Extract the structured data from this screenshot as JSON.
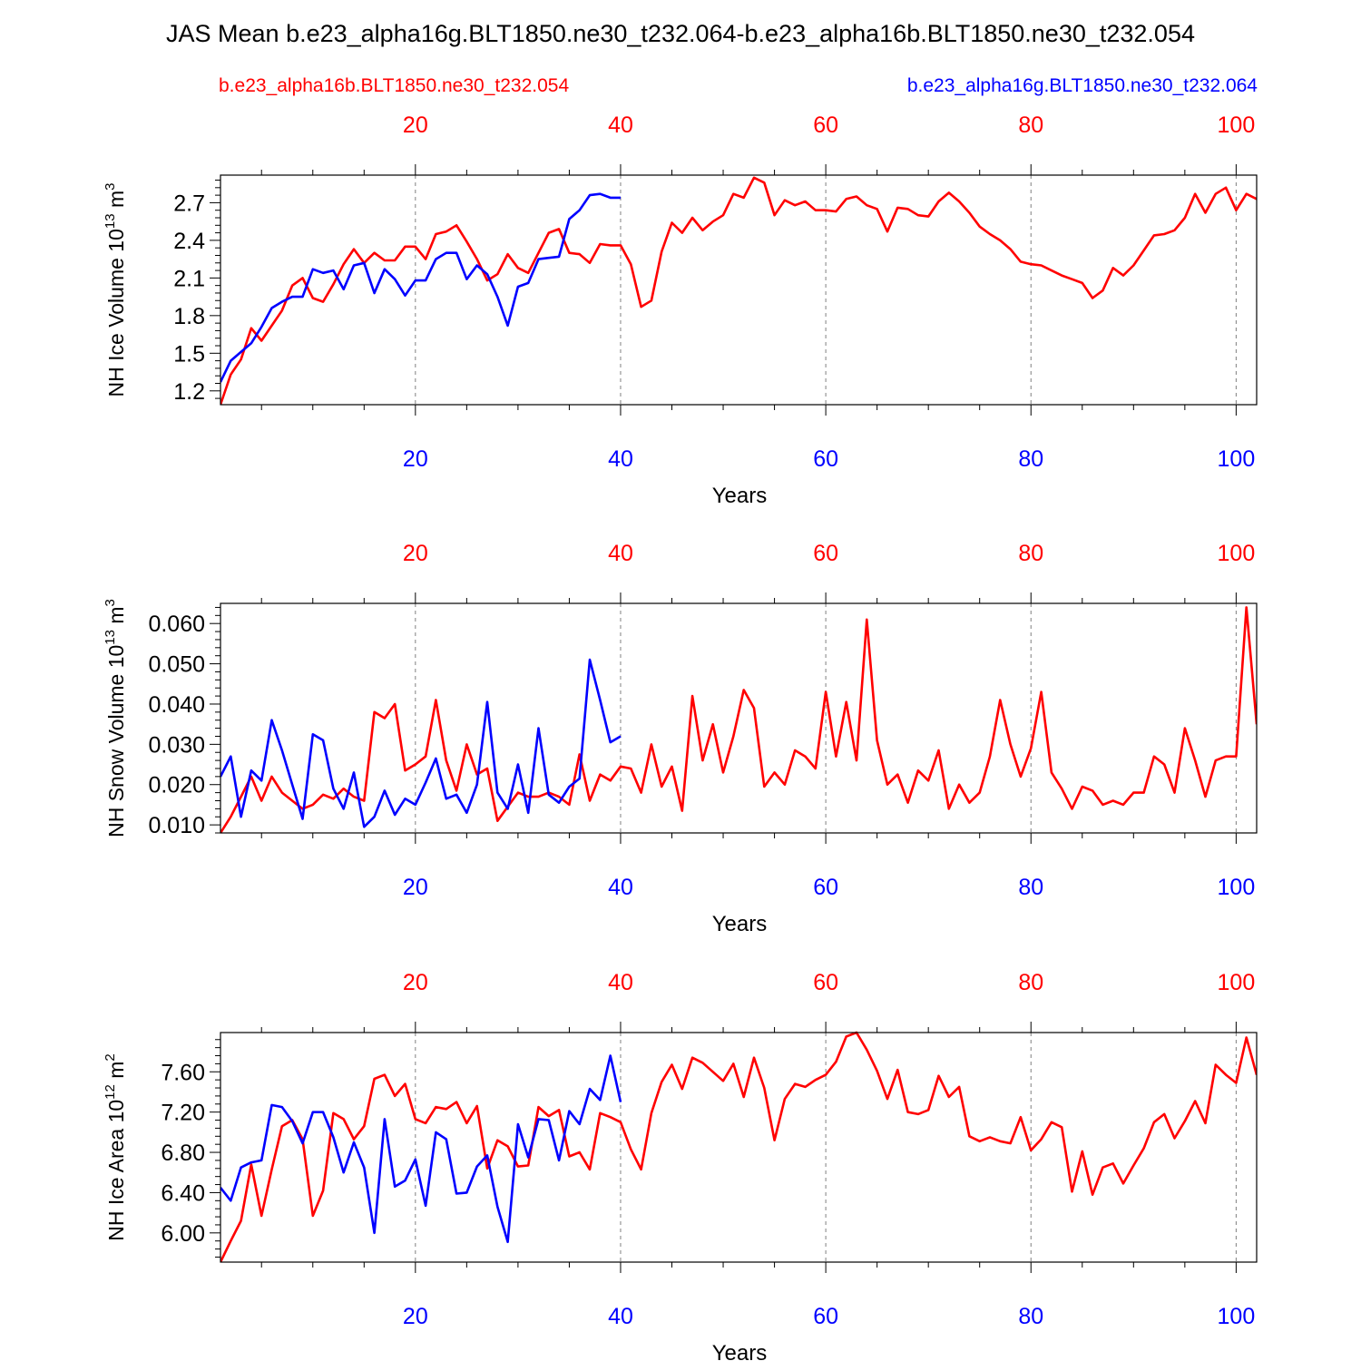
{
  "page": {
    "title": "JAS Mean b.e23_alpha16g.BLT1850.ne30_t232.064-b.e23_alpha16b.BLT1850.ne30_t232.054",
    "legend_left": "b.e23_alpha16b.BLT1850.ne30_t232.054",
    "legend_right": "b.e23_alpha16g.BLT1850.ne30_t232.064"
  },
  "colors": {
    "red": "#ff0000",
    "blue": "#0000ff",
    "axis": "#000000",
    "grid": "#808080"
  },
  "chart_data": [
    {
      "type": "line",
      "ylabel": "NH Ice Volume 10",
      "ylabel_sup1": "13",
      "ylabel_unit": " m",
      "ylabel_sup2": "3",
      "xlabel": "Years",
      "xlim": [
        1,
        102
      ],
      "ylim": [
        1.09,
        2.92
      ],
      "yticks": [
        "1.2",
        "1.5",
        "1.8",
        "2.1",
        "2.4",
        "2.7"
      ],
      "xticks": [
        "20",
        "40",
        "60",
        "80",
        "100"
      ],
      "grid": "vertical dashed at 20, 40, 60, 80, 100",
      "series": [
        {
          "name": "b.e23_alpha16b.BLT1850.ne30_t232.054",
          "color": "#ff0000",
          "x_start": 1,
          "values": [
            1.09,
            1.33,
            1.45,
            1.7,
            1.6,
            1.72,
            1.84,
            2.04,
            2.1,
            1.94,
            1.91,
            2.05,
            2.21,
            2.33,
            2.22,
            2.3,
            2.24,
            2.24,
            2.35,
            2.35,
            2.25,
            2.45,
            2.47,
            2.52,
            2.39,
            2.25,
            2.08,
            2.13,
            2.29,
            2.18,
            2.14,
            2.3,
            2.46,
            2.49,
            2.3,
            2.29,
            2.22,
            2.37,
            2.36,
            2.36,
            2.21,
            1.87,
            1.92,
            2.31,
            2.54,
            2.46,
            2.58,
            2.48,
            2.55,
            2.6,
            2.77,
            2.74,
            2.9,
            2.86,
            2.6,
            2.72,
            2.68,
            2.71,
            2.64,
            2.64,
            2.63,
            2.73,
            2.75,
            2.68,
            2.65,
            2.47,
            2.66,
            2.65,
            2.6,
            2.59,
            2.71,
            2.78,
            2.71,
            2.62,
            2.51,
            2.45,
            2.4,
            2.33,
            2.23,
            2.21,
            2.2,
            2.16,
            2.12,
            2.09,
            2.06,
            1.94,
            2.0,
            2.18,
            2.12,
            2.2,
            2.32,
            2.44,
            2.45,
            2.48,
            2.58,
            2.77,
            2.62,
            2.77,
            2.82,
            2.64,
            2.77,
            2.73
          ]
        },
        {
          "name": "b.e23_alpha16g.BLT1850.ne30_t232.064",
          "color": "#0000ff",
          "x_start": 1,
          "values": [
            1.27,
            1.44,
            1.51,
            1.58,
            1.71,
            1.86,
            1.91,
            1.95,
            1.95,
            2.17,
            2.14,
            2.16,
            2.01,
            2.2,
            2.22,
            1.98,
            2.17,
            2.09,
            1.96,
            2.08,
            2.08,
            2.25,
            2.3,
            2.3,
            2.09,
            2.2,
            2.13,
            1.95,
            1.72,
            2.03,
            2.06,
            2.25,
            2.26,
            2.27,
            2.57,
            2.64,
            2.76,
            2.77,
            2.74,
            2.74
          ]
        }
      ]
    },
    {
      "type": "line",
      "ylabel": "NH Snow Volume 10",
      "ylabel_sup1": "13",
      "ylabel_unit": " m",
      "ylabel_sup2": "3",
      "xlabel": "Years",
      "xlim": [
        1,
        102
      ],
      "ylim": [
        0.008,
        0.065
      ],
      "yticks": [
        "0.010",
        "0.020",
        "0.030",
        "0.040",
        "0.050",
        "0.060"
      ],
      "xticks": [
        "20",
        "40",
        "60",
        "80",
        "100"
      ],
      "grid": "vertical dashed at 20, 40, 60, 80, 100",
      "series": [
        {
          "name": "b.e23_alpha16b.BLT1850.ne30_t232.054",
          "color": "#ff0000",
          "x_start": 1,
          "values": [
            0.008,
            0.012,
            0.017,
            0.022,
            0.016,
            0.022,
            0.018,
            0.016,
            0.014,
            0.015,
            0.0175,
            0.0165,
            0.019,
            0.017,
            0.016,
            0.038,
            0.0365,
            0.04,
            0.0235,
            0.025,
            0.027,
            0.041,
            0.026,
            0.0185,
            0.03,
            0.0225,
            0.024,
            0.011,
            0.0145,
            0.018,
            0.017,
            0.017,
            0.018,
            0.017,
            0.015,
            0.0275,
            0.016,
            0.0225,
            0.021,
            0.0245,
            0.024,
            0.018,
            0.03,
            0.0195,
            0.0245,
            0.0135,
            0.042,
            0.026,
            0.035,
            0.023,
            0.032,
            0.0435,
            0.039,
            0.0195,
            0.023,
            0.02,
            0.0285,
            0.027,
            0.024,
            0.043,
            0.027,
            0.0405,
            0.026,
            0.061,
            0.031,
            0.02,
            0.0225,
            0.0155,
            0.0235,
            0.021,
            0.0285,
            0.014,
            0.02,
            0.0155,
            0.018,
            0.027,
            0.041,
            0.03,
            0.022,
            0.029,
            0.043,
            0.023,
            0.019,
            0.014,
            0.0195,
            0.0185,
            0.015,
            0.016,
            0.015,
            0.018,
            0.018,
            0.027,
            0.025,
            0.018,
            0.034,
            0.026,
            0.017,
            0.026,
            0.027,
            0.027,
            0.064,
            0.035
          ]
        },
        {
          "name": "b.e23_alpha16g.BLT1850.ne30_t232.064",
          "color": "#0000ff",
          "x_start": 1,
          "values": [
            0.022,
            0.027,
            0.012,
            0.0235,
            0.021,
            0.036,
            0.0285,
            0.02,
            0.0115,
            0.0325,
            0.031,
            0.019,
            0.014,
            0.023,
            0.0095,
            0.012,
            0.0185,
            0.0125,
            0.0165,
            0.015,
            0.0205,
            0.0265,
            0.0165,
            0.0175,
            0.013,
            0.02,
            0.0405,
            0.018,
            0.014,
            0.025,
            0.013,
            0.034,
            0.0175,
            0.0155,
            0.0195,
            0.0215,
            0.051,
            0.041,
            0.0305,
            0.032
          ]
        }
      ]
    },
    {
      "type": "line",
      "ylabel": "NH Ice Area 10",
      "ylabel_sup1": "12",
      "ylabel_unit": " m",
      "ylabel_sup2": "2",
      "xlabel": "Years",
      "xlim": [
        1,
        102
      ],
      "ylim": [
        5.71,
        7.99
      ],
      "yticks": [
        "6.00",
        "6.40",
        "6.80",
        "7.20",
        "7.60"
      ],
      "xticks": [
        "20",
        "40",
        "60",
        "80",
        "100"
      ],
      "grid": "vertical dashed at 20, 40, 60, 80, 100",
      "series": [
        {
          "name": "b.e23_alpha16b.BLT1850.ne30_t232.054",
          "color": "#ff0000",
          "x_start": 1,
          "values": [
            5.71,
            5.92,
            6.12,
            6.68,
            6.17,
            6.63,
            7.06,
            7.12,
            6.93,
            6.17,
            6.42,
            7.19,
            7.13,
            6.93,
            7.06,
            7.53,
            7.57,
            7.36,
            7.48,
            7.13,
            7.09,
            7.25,
            7.23,
            7.3,
            7.09,
            7.26,
            6.64,
            6.92,
            6.86,
            6.66,
            6.67,
            7.25,
            7.16,
            7.22,
            6.76,
            6.8,
            6.63,
            7.19,
            7.15,
            7.1,
            6.83,
            6.63,
            7.19,
            7.5,
            7.67,
            7.43,
            7.74,
            7.69,
            7.6,
            7.51,
            7.68,
            7.35,
            7.74,
            7.44,
            6.92,
            7.33,
            7.48,
            7.45,
            7.52,
            7.57,
            7.7,
            7.95,
            7.99,
            7.82,
            7.61,
            7.33,
            7.62,
            7.2,
            7.18,
            7.22,
            7.56,
            7.35,
            7.45,
            6.96,
            6.91,
            6.95,
            6.91,
            6.89,
            7.15,
            6.82,
            6.93,
            7.1,
            7.05,
            6.41,
            6.81,
            6.38,
            6.65,
            6.69,
            6.49,
            6.67,
            6.84,
            7.1,
            7.18,
            6.94,
            7.11,
            7.31,
            7.09,
            7.67,
            7.57,
            7.49,
            7.94,
            7.57
          ]
        },
        {
          "name": "b.e23_alpha16g.BLT1850.ne30_t232.064",
          "color": "#0000ff",
          "x_start": 1,
          "values": [
            6.45,
            6.32,
            6.65,
            6.7,
            6.72,
            7.27,
            7.25,
            7.11,
            6.89,
            7.2,
            7.2,
            6.95,
            6.6,
            6.9,
            6.65,
            6.0,
            7.13,
            6.46,
            6.52,
            6.73,
            6.27,
            7.0,
            6.93,
            6.39,
            6.4,
            6.66,
            6.77,
            6.26,
            5.91,
            7.08,
            6.75,
            7.13,
            7.12,
            6.72,
            7.21,
            7.08,
            7.43,
            7.32,
            7.76,
            7.3
          ]
        }
      ]
    }
  ]
}
